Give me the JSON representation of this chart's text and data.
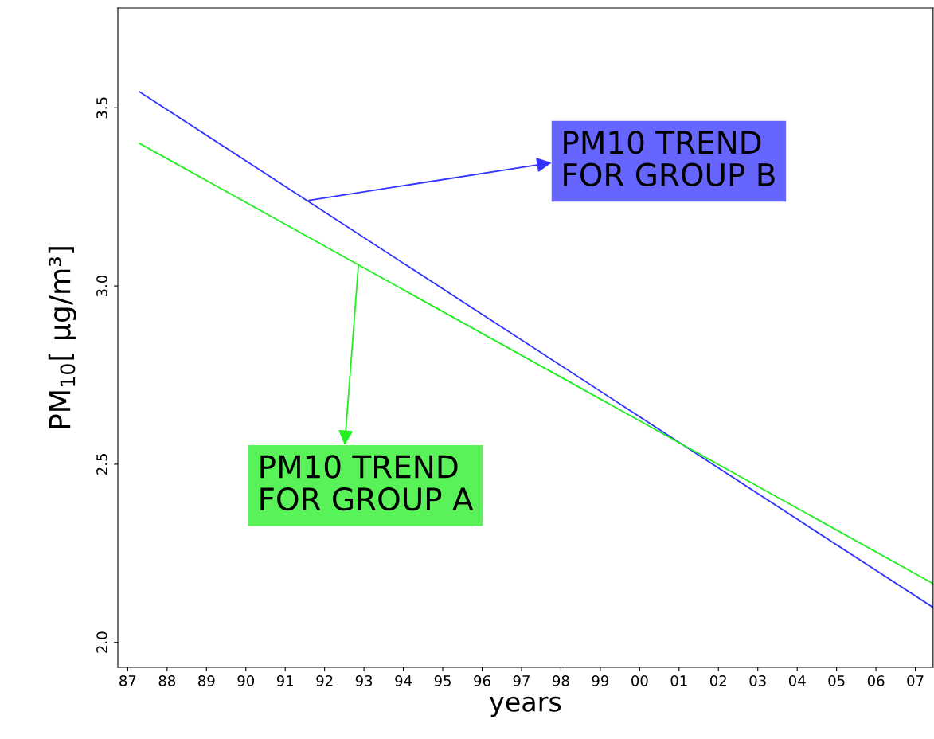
{
  "chart_data": {
    "type": "line",
    "xlabel": "years",
    "ylabel": "PM$_{10}$[ µg/m³]",
    "xlim": [
      1986.75,
      2007.45
    ],
    "ylim": [
      1.93,
      3.78
    ],
    "xticks": [
      {
        "value": 1987,
        "label": "87"
      },
      {
        "value": 1988,
        "label": "88"
      },
      {
        "value": 1989,
        "label": "89"
      },
      {
        "value": 1990,
        "label": "90"
      },
      {
        "value": 1991,
        "label": "91"
      },
      {
        "value": 1992,
        "label": "92"
      },
      {
        "value": 1993,
        "label": "93"
      },
      {
        "value": 1994,
        "label": "94"
      },
      {
        "value": 1995,
        "label": "95"
      },
      {
        "value": 1996,
        "label": "96"
      },
      {
        "value": 1997,
        "label": "97"
      },
      {
        "value": 1998,
        "label": "98"
      },
      {
        "value": 1999,
        "label": "99"
      },
      {
        "value": 2000,
        "label": "00"
      },
      {
        "value": 2001,
        "label": "01"
      },
      {
        "value": 2002,
        "label": "02"
      },
      {
        "value": 2003,
        "label": "03"
      },
      {
        "value": 2004,
        "label": "04"
      },
      {
        "value": 2005,
        "label": "05"
      },
      {
        "value": 2006,
        "label": "06"
      },
      {
        "value": 2007,
        "label": "07"
      }
    ],
    "yticks": [
      {
        "value": 2.0,
        "label": "2.0"
      },
      {
        "value": 2.5,
        "label": "2.5"
      },
      {
        "value": 3.0,
        "label": "3.0"
      },
      {
        "value": 3.5,
        "label": "3.5"
      }
    ],
    "series": [
      {
        "color": "#3333ff",
        "values": [
          3.545,
          2.098
        ]
      },
      {
        "color": "#22ee22",
        "values": [
          3.4,
          2.165
        ]
      }
    ],
    "x": [
      1987.3,
      2007.45
    ],
    "annotations": [
      {
        "text": "PM10 TREND\nFOR GROUP B",
        "x": 1991.6,
        "y": 3.24
      },
      {
        "text": "PM10 TREND\nFOR GROUP A",
        "x": 1992.86,
        "y": 3.06
      }
    ],
    "grid": false,
    "legend": false,
    "marker": "none",
    "line_style": "solid"
  }
}
